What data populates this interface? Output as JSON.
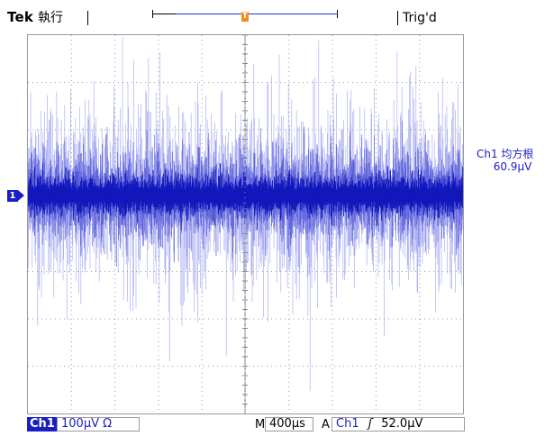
{
  "header": {
    "brand": "Tek",
    "run_state": "執行",
    "trigger_status": "Trig'd",
    "trigger_position_marker": "T",
    "trigger_point_marker": "T"
  },
  "waveform": {
    "channel_marker": "1",
    "trace_color": "#1a1fc4",
    "envelope_color": "#8a90f0"
  },
  "measurement": {
    "label": "Ch1 均方根",
    "value": "60.9μV"
  },
  "bottom_bar": {
    "channel": "Ch1",
    "volts_per_div": "100μV Ω",
    "time_prefix": "M",
    "time_per_div": "400μs",
    "trigger_prefix": "A",
    "trigger_channel": "Ch1",
    "trigger_slope": "ʃ",
    "trigger_level": "52.0μV"
  }
}
